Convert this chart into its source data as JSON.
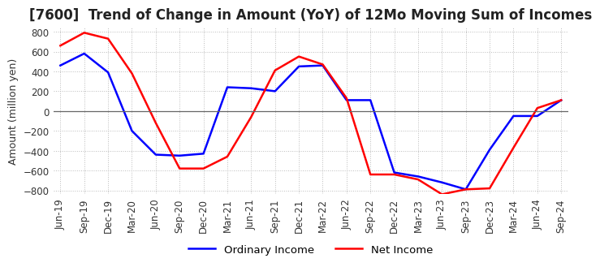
{
  "title": "[7600]  Trend of Change in Amount (YoY) of 12Mo Moving Sum of Incomes",
  "ylabel": "Amount (million yen)",
  "ylim": [
    -840,
    840
  ],
  "yticks": [
    -800,
    -600,
    -400,
    -200,
    0,
    200,
    400,
    600,
    800
  ],
  "x_labels": [
    "Jun-19",
    "Sep-19",
    "Dec-19",
    "Mar-20",
    "Jun-20",
    "Sep-20",
    "Dec-20",
    "Mar-21",
    "Jun-21",
    "Sep-21",
    "Dec-21",
    "Mar-22",
    "Jun-22",
    "Sep-22",
    "Dec-22",
    "Mar-23",
    "Jun-23",
    "Sep-23",
    "Dec-23",
    "Mar-24",
    "Jun-24",
    "Sep-24"
  ],
  "ordinary_income": [
    460,
    580,
    390,
    -200,
    -440,
    -450,
    -430,
    240,
    230,
    200,
    450,
    460,
    110,
    110,
    -620,
    -660,
    -720,
    -790,
    -390,
    -50,
    -50,
    110
  ],
  "net_income": [
    660,
    790,
    730,
    380,
    -120,
    -580,
    -580,
    -460,
    -60,
    410,
    550,
    470,
    130,
    -640,
    -640,
    -690,
    -840,
    -790,
    -780,
    -370,
    30,
    110
  ],
  "ordinary_color": "#0000ff",
  "net_color": "#ff0000",
  "grid_color": "#bbbbbb",
  "zero_line_color": "#666666",
  "background_color": "#ffffff",
  "title_fontsize": 12,
  "label_fontsize": 9,
  "tick_fontsize": 8.5
}
